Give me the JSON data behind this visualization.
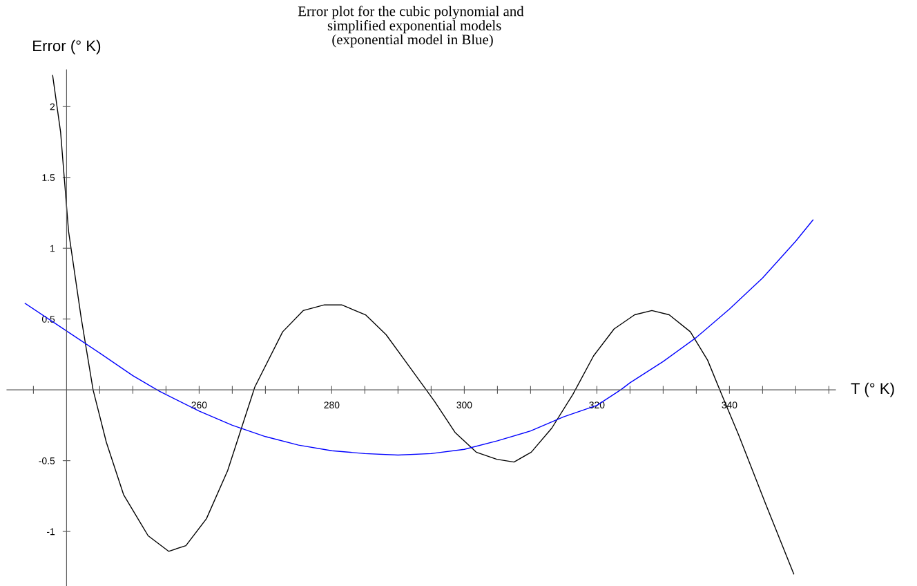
{
  "chart_data": {
    "type": "line",
    "title": "Error plot for the cubic polynomial and\n  simplified exponential models\n (exponential model in Blue)",
    "xlabel": "T (° K)",
    "ylabel": "Error (° K)",
    "xlim": [
      231,
      356
    ],
    "ylim": [
      -1.385,
      2.26
    ],
    "xticks": [
      {
        "value": 235,
        "label": null
      },
      {
        "value": 245,
        "label": null
      },
      {
        "value": 250,
        "label": null
      },
      {
        "value": 255,
        "label": null
      },
      260,
      {
        "value": 265,
        "label": null
      },
      {
        "value": 270,
        "label": null
      },
      {
        "value": 275,
        "label": null
      },
      280,
      {
        "value": 285,
        "label": null
      },
      {
        "value": 290,
        "label": null
      },
      {
        "value": 295,
        "label": null
      },
      300,
      {
        "value": 305,
        "label": null
      },
      {
        "value": 310,
        "label": null
      },
      {
        "value": 315,
        "label": null
      },
      320,
      {
        "value": 325,
        "label": null
      },
      {
        "value": 330,
        "label": null
      },
      {
        "value": 335,
        "label": null
      },
      340,
      {
        "value": 345,
        "label": null
      },
      {
        "value": 350,
        "label": null
      },
      {
        "value": 355,
        "label": null
      }
    ],
    "yticks": [
      {
        "value": -1,
        "label": "-1"
      },
      {
        "value": -0.5,
        "label": "-0.5"
      },
      {
        "value": 0.5,
        "label": "0.5"
      },
      1,
      1.5,
      2
    ],
    "grid": false,
    "marker": "none",
    "line_style": "solid",
    "series": [
      {
        "color": "#000000",
        "x": [
          237.9,
          239.1,
          240.3,
          242.2,
          244,
          246,
          248.6,
          252.3,
          255.4,
          258,
          261.1,
          264.3,
          268.4,
          272.6,
          275.7,
          278.9,
          281.5,
          285.1,
          288.2,
          292.4,
          295.5,
          298.6,
          301.8,
          304.9,
          307.5,
          310.1,
          313.2,
          316.4,
          319.5,
          322.6,
          325.7,
          328.3,
          330.9,
          334.1,
          336.7,
          338.8,
          341.4,
          345.5,
          349.7
        ],
        "values": [
          2.22,
          1.82,
          1.12,
          0.51,
          0,
          -0.37,
          -0.74,
          -1.03,
          -1.14,
          -1.1,
          -0.91,
          -0.57,
          0.02,
          0.41,
          0.56,
          0.6,
          0.6,
          0.53,
          0.39,
          0.12,
          -0.08,
          -0.3,
          -0.44,
          -0.49,
          -0.51,
          -0.44,
          -0.27,
          -0.03,
          0.24,
          0.43,
          0.53,
          0.56,
          0.53,
          0.41,
          0.21,
          -0.03,
          -0.32,
          -0.81,
          -1.3
        ]
      },
      {
        "color": "#0000ff",
        "x": [
          233.75,
          240.5,
          245,
          250,
          254,
          260,
          265,
          270,
          275,
          280,
          285,
          290,
          295,
          300,
          305,
          310,
          315,
          320,
          323.6,
          325,
          330,
          335,
          340,
          345,
          350,
          352.6
        ],
        "values": [
          0.61,
          0.4,
          0.26,
          0.1,
          -0.01,
          -0.15,
          -0.25,
          -0.33,
          -0.39,
          -0.43,
          -0.45,
          -0.46,
          -0.45,
          -0.42,
          -0.36,
          -0.29,
          -0.19,
          -0.11,
          0,
          0.05,
          0.2,
          0.37,
          0.57,
          0.79,
          1.05,
          1.2
        ]
      }
    ]
  }
}
